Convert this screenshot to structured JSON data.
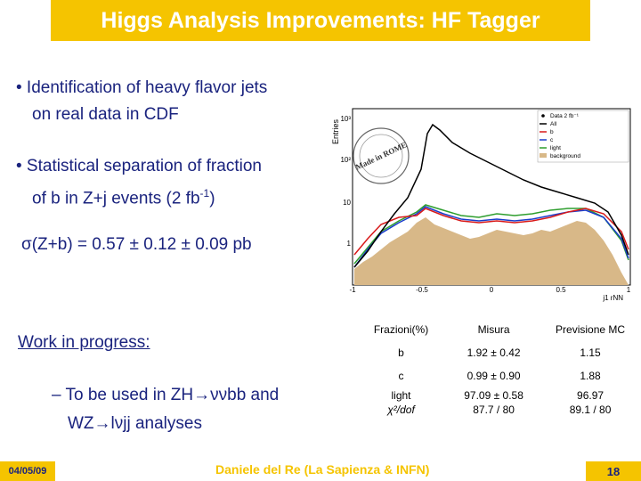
{
  "slide": {
    "title": "Higgs Analysis Improvements: HF Tagger",
    "bullet1_line1": "• Identification of heavy flavor jets",
    "bullet1_line2": "on real data in CDF",
    "bullet2_line1": "• Statistical separation of fraction",
    "bullet2_line2": "of b in Z+j events (2 fb",
    "bullet2_sup": "-1",
    "bullet2_end": ")",
    "sigma_text": "σ(Z+b) = 0.57 ± 0.12 ± 0.09 pb",
    "wip": "Work in progress:",
    "sub_line1": "– To be used in ZH→ννbb and",
    "sub_line2": "WZ→lνjj analyses"
  },
  "plot": {
    "ylabel": "Entries",
    "xlabel": "j1 rNN",
    "y_ticks": [
      "10³",
      "10²",
      "10",
      "1"
    ],
    "x_ticks": [
      "-1",
      "-0.5",
      "0",
      "0.5",
      "1"
    ],
    "legend": [
      "Data 2 fb⁻¹",
      "All",
      "b",
      "c",
      "light",
      "background"
    ],
    "stamp_text": "Made in ROME"
  },
  "table": {
    "header": [
      "Frazioni(%)",
      "Misura",
      "Previsione MC"
    ],
    "rows": [
      [
        "b",
        "1.92 ± 0.42",
        "1.15"
      ],
      [
        "c",
        "0.99 ± 0.90",
        "1.88"
      ],
      [
        "light",
        "97.09 ± 0.58",
        "96.97"
      ],
      [
        "χ²/dof",
        "87.7 / 80",
        "89.1 / 80"
      ]
    ]
  },
  "footer": {
    "date": "04/05/09",
    "author": "Daniele del Re (La Sapienza & INFN)",
    "page": "18"
  },
  "colors": {
    "accent": "#f5c400",
    "text": "#1a237e"
  }
}
